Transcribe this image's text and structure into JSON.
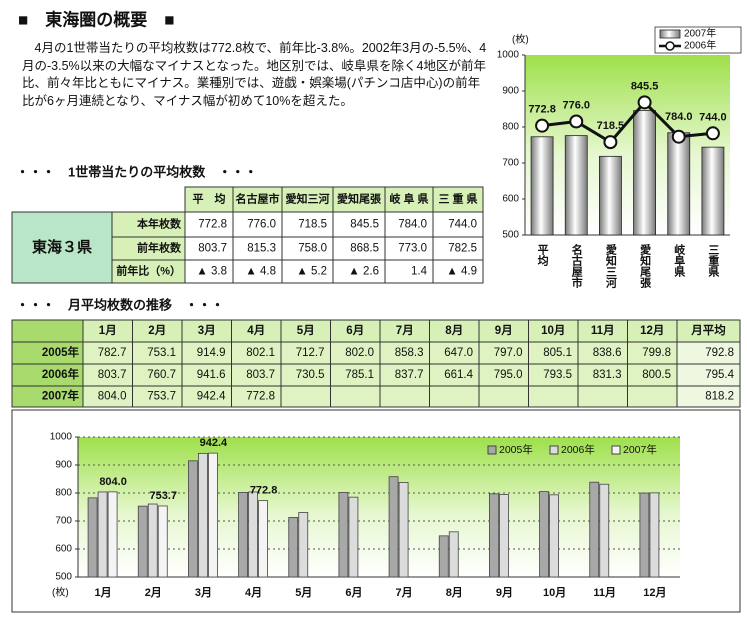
{
  "header": {
    "title": "■　東海圏の概要　■"
  },
  "summary": "4月の1世帯当たりの平均枚数は772.8枚で、前年比-3.8%。2002年3月の-5.5%、4月の-3.5%以来の大幅なマイナスとなった。地区別では、岐阜県を除く4地区が前年比、前々年比ともにマイナス。業種別では、遊戯・娯楽場(パチンコ店中心)の前年比が6ヶ月連続となり、マイナス幅が初めて10%を超えた。",
  "table1": {
    "heading": "・・・　1世帯当たりの平均枚数　・・・",
    "group": "東海３県",
    "columns": [
      "平　均",
      "名古屋市",
      "愛知三河",
      "愛知尾張",
      "岐 阜 県",
      "三 重 県"
    ],
    "rows": [
      {
        "label": "本年枚数",
        "cells": [
          "772.8",
          "776.0",
          "718.5",
          "845.5",
          "784.0",
          "744.0"
        ]
      },
      {
        "label": "前年枚数",
        "cells": [
          "803.7",
          "815.3",
          "758.0",
          "868.5",
          "773.0",
          "782.5"
        ]
      },
      {
        "label": "前年比（%）",
        "cells": [
          "▲ 3.8",
          "▲ 4.8",
          "▲ 5.2",
          "▲ 2.6",
          "1.4",
          "▲ 4.9"
        ]
      }
    ]
  },
  "table2": {
    "heading": "・・・　月平均枚数の推移　・・・",
    "columns": [
      "1月",
      "2月",
      "3月",
      "4月",
      "5月",
      "6月",
      "7月",
      "8月",
      "9月",
      "10月",
      "11月",
      "12月",
      "月平均"
    ],
    "rows": [
      {
        "label": "2005年",
        "cells": [
          "782.7",
          "753.1",
          "914.9",
          "802.1",
          "712.7",
          "802.0",
          "858.3",
          "647.0",
          "797.0",
          "805.1",
          "838.6",
          "799.8",
          "792.8"
        ]
      },
      {
        "label": "2006年",
        "cells": [
          "803.7",
          "760.7",
          "941.6",
          "803.7",
          "730.5",
          "785.1",
          "837.7",
          "661.4",
          "795.0",
          "793.5",
          "831.3",
          "800.5",
          "795.4"
        ]
      },
      {
        "label": "2007年",
        "cells": [
          "804.0",
          "753.7",
          "942.4",
          "772.8",
          null,
          null,
          null,
          null,
          null,
          null,
          null,
          null,
          "818.2"
        ]
      }
    ]
  },
  "chart_data": [
    {
      "type": "combo",
      "ylabel": "(枚)",
      "categories": [
        "平均",
        "名古屋市",
        "愛知三河",
        "愛知尾張",
        "岐阜県",
        "三重県"
      ],
      "series": [
        {
          "name": "2007年",
          "type": "bar",
          "color": "#7a7a7a",
          "values": [
            772.8,
            776.0,
            718.5,
            845.5,
            784.0,
            744.0
          ],
          "value_labels": [
            "772.8",
            "776.0",
            "718.5",
            "845.5",
            "784.0",
            "744.0"
          ]
        },
        {
          "name": "2006年",
          "type": "line",
          "color": "#111111",
          "values": [
            803.7,
            815.3,
            758.0,
            868.5,
            773.0,
            782.5
          ]
        }
      ],
      "ylim": [
        500,
        1000
      ],
      "yticks": [
        500,
        600,
        700,
        800,
        900,
        1000
      ],
      "grid": false,
      "legend": "top-right"
    },
    {
      "type": "bar",
      "ylabel": "(枚)",
      "categories": [
        "1月",
        "2月",
        "3月",
        "4月",
        "5月",
        "6月",
        "7月",
        "8月",
        "9月",
        "10月",
        "11月",
        "12月"
      ],
      "series": [
        {
          "name": "2005年",
          "color": "#a8a8a8",
          "values": [
            782.7,
            753.1,
            914.9,
            802.1,
            712.7,
            802.0,
            858.3,
            647.0,
            797.0,
            805.1,
            838.6,
            799.8
          ]
        },
        {
          "name": "2006年",
          "color": "#dcdcdc",
          "values": [
            803.7,
            760.7,
            941.6,
            803.7,
            730.5,
            785.1,
            837.7,
            661.4,
            795.0,
            793.5,
            831.3,
            800.5
          ]
        },
        {
          "name": "2007年",
          "color": "#f4f4f4",
          "values": [
            804.0,
            753.7,
            942.4,
            772.8,
            null,
            null,
            null,
            null,
            null,
            null,
            null,
            null
          ],
          "value_labels": [
            "804.0",
            "753.7",
            "942.4",
            "772.8",
            null,
            null,
            null,
            null,
            null,
            null,
            null,
            null
          ]
        }
      ],
      "ylim": [
        500,
        1000
      ],
      "yticks": [
        500,
        600,
        700,
        800,
        900,
        1000
      ],
      "grid": true,
      "legend": "top-right"
    }
  ]
}
